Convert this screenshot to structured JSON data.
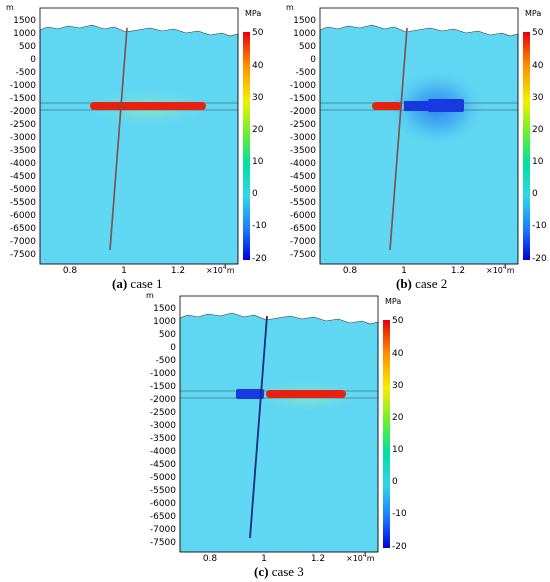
{
  "colorbar": {
    "unit": "MPa",
    "ticks": [
      "50",
      "40",
      "30",
      "20",
      "10",
      "0",
      "-10",
      "-20"
    ],
    "gradient_colors": [
      "#e8000a",
      "#ff8a00",
      "#f3f000",
      "#66ee33",
      "#00e0a0",
      "#33d6e6",
      "#1d7fff",
      "#0000d8"
    ]
  },
  "axes": {
    "y_unit": "m",
    "y_ticks": [
      "1500",
      "1000",
      "500",
      "0",
      "-500",
      "-1000",
      "-1500",
      "-2000",
      "-2500",
      "-3000",
      "-3500",
      "-4000",
      "-4500",
      "-5000",
      "-5500",
      "-6000",
      "-6500",
      "-7000",
      "-7500"
    ],
    "x_ticks": [
      "0.8",
      "1",
      "1.2"
    ],
    "x_unit_base": "×10",
    "x_unit_exp": "4",
    "x_unit_suffix": "m"
  },
  "colors": {
    "background_field": "#5fd6f2",
    "compression": "#e82010",
    "tension": "#1838e0"
  },
  "panels": [
    {
      "label": "(a)",
      "title": "case 1"
    },
    {
      "label": "(b)",
      "title": "case 2"
    },
    {
      "label": "(c)",
      "title": "case 3"
    }
  ]
}
